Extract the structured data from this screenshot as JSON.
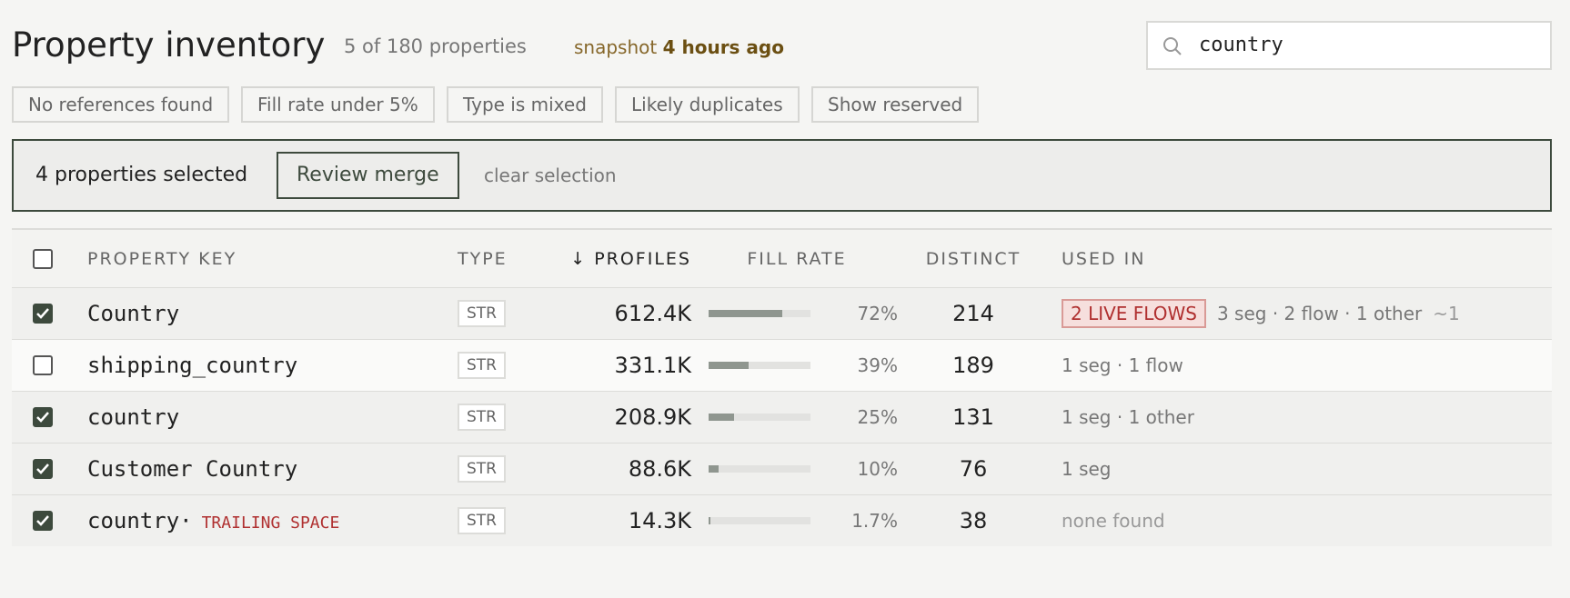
{
  "header": {
    "title": "Property inventory",
    "count": "5 of 180 properties",
    "snapshot": "snapshot",
    "snapshot_age": "4 hours ago"
  },
  "search": {
    "value": "country"
  },
  "filters": [
    "No references found",
    "Fill rate under 5%",
    "Type is mixed",
    "Likely duplicates",
    "Show reserved"
  ],
  "selection": {
    "text": "4 properties selected",
    "action": "Review merge",
    "clear": "clear selection"
  },
  "table": {
    "columns": [
      "PROPERTY KEY",
      "TYPE",
      "PROFILES",
      "FILL RATE",
      "DISTINCT",
      "USED IN"
    ],
    "rows": [
      {
        "selected": true,
        "key": "Country",
        "type": "STR",
        "profiles": "612.4K",
        "fill_rate": 72,
        "fill_rate_label": "72%",
        "distinct": 214,
        "badge": "2 LIVE FLOWS",
        "used_in": "3 seg · 2 flow · 1 other",
        "extra": "~1"
      },
      {
        "selected": false,
        "key": "shipping_country",
        "type": "STR",
        "profiles": "331.1K",
        "fill_rate": 39,
        "fill_rate_label": "39%",
        "distinct": 189,
        "used_in": "1 seg · 1 flow"
      },
      {
        "selected": true,
        "key": "country",
        "type": "STR",
        "profiles": "208.9K",
        "fill_rate": 25,
        "fill_rate_label": "25%",
        "distinct": 131,
        "used_in": "1 seg · 1 other"
      },
      {
        "selected": true,
        "key": "Customer Country",
        "type": "STR",
        "profiles": "88.6K",
        "fill_rate": 10,
        "fill_rate_label": "10%",
        "distinct": 76,
        "used_in": "1 seg"
      },
      {
        "selected": true,
        "key": "country·",
        "tag": "TRAILING SPACE",
        "type": "STR",
        "profiles": "14.3K",
        "fill_rate": 1.7,
        "fill_rate_label": "1.7%",
        "distinct": 38,
        "used_in": "none found",
        "muted": true
      }
    ]
  }
}
